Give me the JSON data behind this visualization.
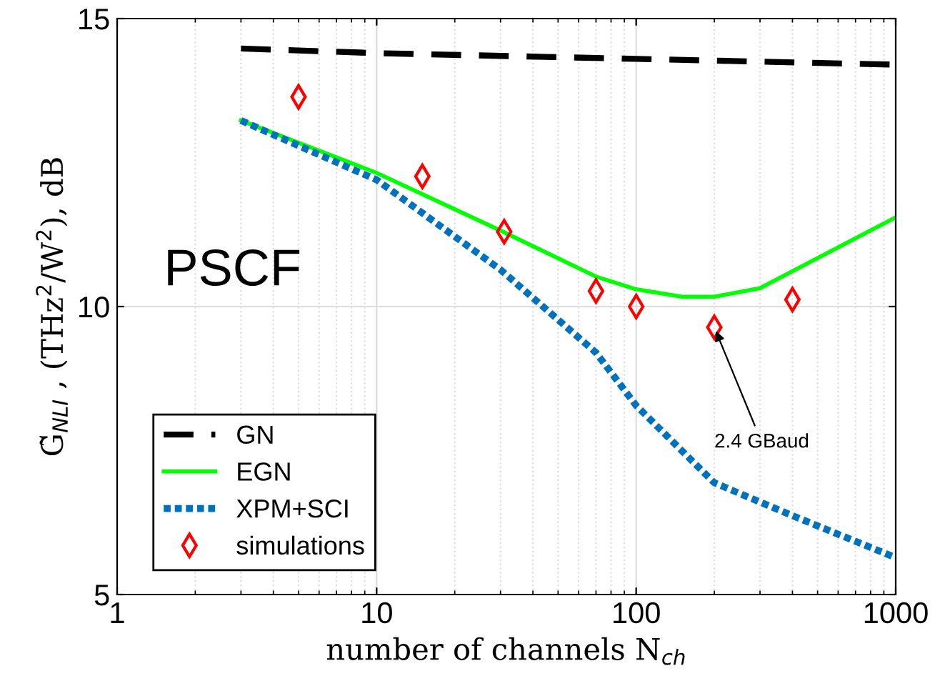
{
  "chart_data": {
    "type": "line",
    "xlabel": "number of channels N$_{ch}$",
    "ylabel": "G̃$_{NLI}$ , (THz$^{2}$/W$^{2}$), dB",
    "log": "x",
    "xlim": [
      1,
      1000
    ],
    "xticks": [
      1,
      10,
      100,
      1000
    ],
    "ylim": [
      5,
      15
    ],
    "yticks": [
      5,
      10,
      15
    ],
    "grid": true,
    "legend": "bottom left",
    "series": [
      {
        "name": "GN",
        "line_style": "dashed",
        "color": "#000000",
        "x": [
          3,
          10,
          100,
          1000
        ],
        "values": [
          14.48,
          14.4,
          14.3,
          14.2
        ]
      },
      {
        "name": "EGN",
        "line_style": "solid",
        "color": "#00ff00",
        "x": [
          3,
          10,
          30,
          70,
          100,
          150,
          200,
          300,
          1000
        ],
        "values": [
          13.23,
          12.32,
          11.32,
          10.52,
          10.3,
          10.17,
          10.17,
          10.32,
          11.55
        ]
      },
      {
        "name": "XPM+SCI",
        "line_style": "dotted",
        "color": "#0072bd",
        "x": [
          3,
          10,
          30,
          70,
          100,
          200,
          400,
          1000
        ],
        "values": [
          13.23,
          12.2,
          10.64,
          9.2,
          8.28,
          6.94,
          6.37,
          5.64
        ]
      },
      {
        "name": "simulations",
        "type": "scatter",
        "marker": "diamond",
        "color": "#ff0000",
        "x": [
          5,
          15,
          31,
          70,
          100,
          200,
          400
        ],
        "values": [
          13.64,
          12.26,
          11.3,
          10.27,
          10.0,
          9.64,
          10.12
        ]
      }
    ],
    "annotations": [
      "PSCF",
      {
        "text": "2.4 GBaud",
        "x": 200,
        "y": 9.64
      }
    ]
  }
}
